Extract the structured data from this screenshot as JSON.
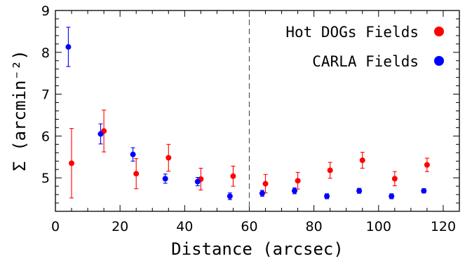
{
  "chart_data": {
    "type": "scatter",
    "xlabel": "Distance (arcsec)",
    "ylabel": "Σ (arcmin⁻²)",
    "xlim": [
      0,
      125
    ],
    "ylim": [
      4.2,
      9
    ],
    "x_ticks": [
      0,
      20,
      40,
      60,
      80,
      100,
      120
    ],
    "y_ticks": [
      5,
      6,
      7,
      8,
      9
    ],
    "x_tick_labels": [
      "0",
      "20",
      "40",
      "60",
      "80",
      "100",
      "120"
    ],
    "y_tick_labels": [
      "5",
      "6",
      "7",
      "8",
      "9"
    ],
    "vertical_reference_line": {
      "x": 60,
      "style": "dashed"
    },
    "legend_position": "top-right",
    "series": [
      {
        "name": "Hot DOGs Fields",
        "color": "#ff0000",
        "points": [
          {
            "x": 5,
            "y": 5.35,
            "err": 0.83
          },
          {
            "x": 15,
            "y": 6.12,
            "err": 0.5
          },
          {
            "x": 25,
            "y": 5.1,
            "err": 0.36
          },
          {
            "x": 35,
            "y": 5.48,
            "err": 0.32
          },
          {
            "x": 45,
            "y": 4.97,
            "err": 0.26
          },
          {
            "x": 55,
            "y": 5.04,
            "err": 0.24
          },
          {
            "x": 65,
            "y": 4.86,
            "err": 0.22
          },
          {
            "x": 75,
            "y": 4.93,
            "err": 0.2
          },
          {
            "x": 85,
            "y": 5.18,
            "err": 0.19
          },
          {
            "x": 95,
            "y": 5.42,
            "err": 0.19
          },
          {
            "x": 105,
            "y": 4.98,
            "err": 0.17
          },
          {
            "x": 115,
            "y": 5.31,
            "err": 0.16
          }
        ]
      },
      {
        "name": "CARLA Fields",
        "color": "#0000ff",
        "points": [
          {
            "x": 4,
            "y": 8.13,
            "err": 0.47
          },
          {
            "x": 14,
            "y": 6.05,
            "err": 0.24
          },
          {
            "x": 24,
            "y": 5.56,
            "err": 0.16
          },
          {
            "x": 34,
            "y": 4.98,
            "err": 0.11
          },
          {
            "x": 44,
            "y": 4.91,
            "err": 0.1
          },
          {
            "x": 54,
            "y": 4.56,
            "err": 0.08
          },
          {
            "x": 64,
            "y": 4.63,
            "err": 0.07
          },
          {
            "x": 74,
            "y": 4.69,
            "err": 0.07
          },
          {
            "x": 84,
            "y": 4.56,
            "err": 0.06
          },
          {
            "x": 94,
            "y": 4.69,
            "err": 0.06
          },
          {
            "x": 104,
            "y": 4.56,
            "err": 0.06
          },
          {
            "x": 114,
            "y": 4.69,
            "err": 0.05
          }
        ]
      }
    ]
  }
}
